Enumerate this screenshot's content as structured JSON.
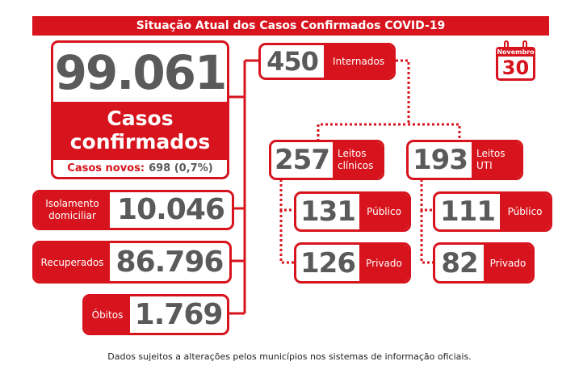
{
  "header": {
    "title": "Situação Atual dos Casos Confirmados COVID-19"
  },
  "calendar": {
    "month": "Novembro",
    "day": "30"
  },
  "main": {
    "value": "99.061",
    "label_line1": "Casos",
    "label_line2": "confirmados",
    "new_cases_label": "Casos novos:",
    "new_cases_value": "698 (0,7%)"
  },
  "isolamento": {
    "label_line1": "Isolamento",
    "label_line2": "domiciliar",
    "value": "10.046"
  },
  "recuperados": {
    "label": "Recuperados",
    "value": "86.796"
  },
  "obitos": {
    "label": "Óbitos",
    "value": "1.769"
  },
  "internados": {
    "value": "450",
    "label": "Internados"
  },
  "leitos_clinicos": {
    "value": "257",
    "label_line1": "Leitos",
    "label_line2": "clínicos",
    "publico": {
      "value": "131",
      "label": "Público"
    },
    "privado": {
      "value": "126",
      "label": "Privado"
    }
  },
  "leitos_uti": {
    "value": "193",
    "label_line1": "Leitos",
    "label_line2": "UTI",
    "publico": {
      "value": "111",
      "label": "Público"
    },
    "privado": {
      "value": "82",
      "label": "Privado"
    }
  },
  "footer": {
    "note": "Dados sujeitos a alterações pelos municípios nos sistemas de informação oficiais."
  },
  "colors": {
    "accent": "#d7141d",
    "number": "#5a5a5a"
  }
}
